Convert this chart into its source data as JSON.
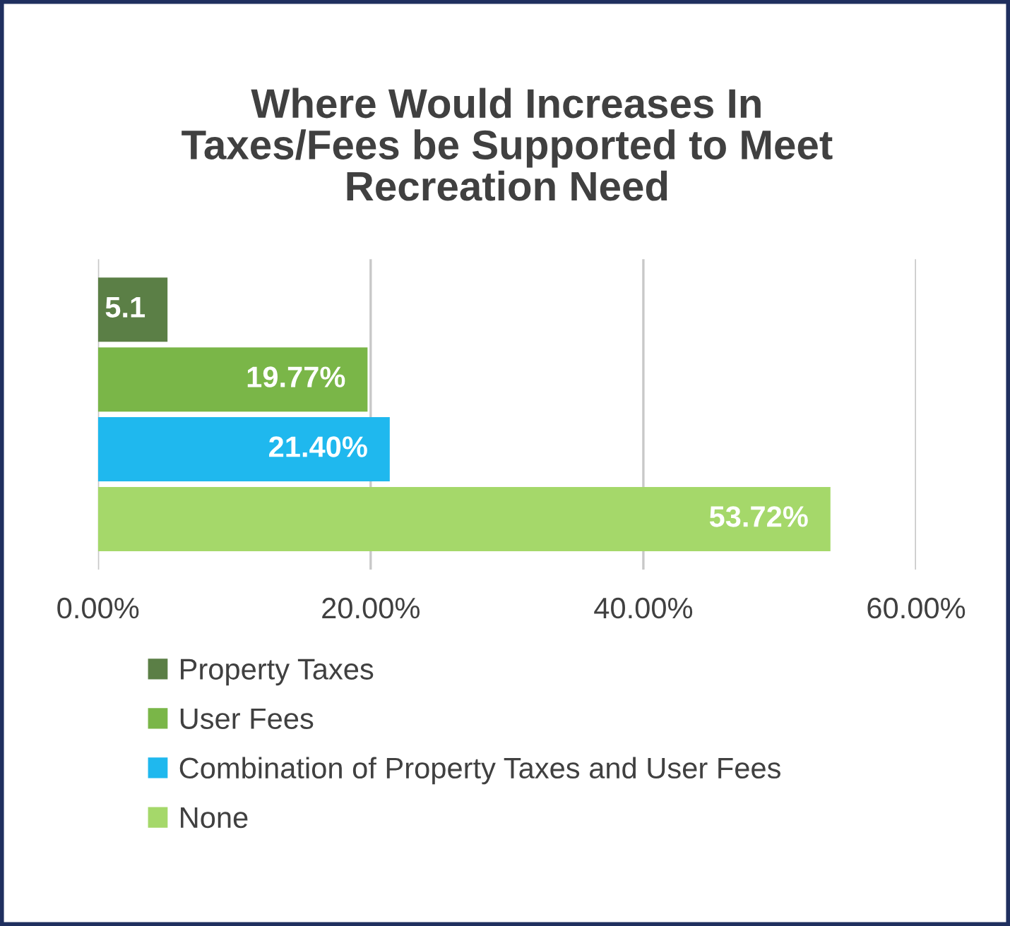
{
  "chart_data": {
    "type": "bar",
    "orientation": "horizontal",
    "title": "Where Would Increases In\nTaxes/Fees be Supported to Meet\nRecreation Need",
    "categories": [
      null
    ],
    "series": [
      {
        "name": "Property Taxes",
        "color": "#5b7f46",
        "values": [
          5.1
        ],
        "value_labels": [
          "5.1"
        ]
      },
      {
        "name": "User Fees",
        "color": "#7ab648",
        "values": [
          19.77
        ],
        "value_labels": [
          "19.77%"
        ]
      },
      {
        "name": "Combination of Property Taxes and User Fees",
        "color": "#1fb8ee",
        "values": [
          21.4
        ],
        "value_labels": [
          "21.40%"
        ]
      },
      {
        "name": "None",
        "color": "#a5d86a",
        "values": [
          53.72
        ],
        "value_labels": [
          "53.72%"
        ]
      }
    ],
    "xlim": [
      0,
      60
    ],
    "xticks": [
      {
        "value": 0,
        "label": "0.00%"
      },
      {
        "value": 20,
        "label": "20.00%"
      },
      {
        "value": 40,
        "label": "40.00%"
      },
      {
        "value": 60,
        "label": "60.00%"
      }
    ],
    "grid": "x",
    "legend": "bottom",
    "tick_labels": "x"
  }
}
